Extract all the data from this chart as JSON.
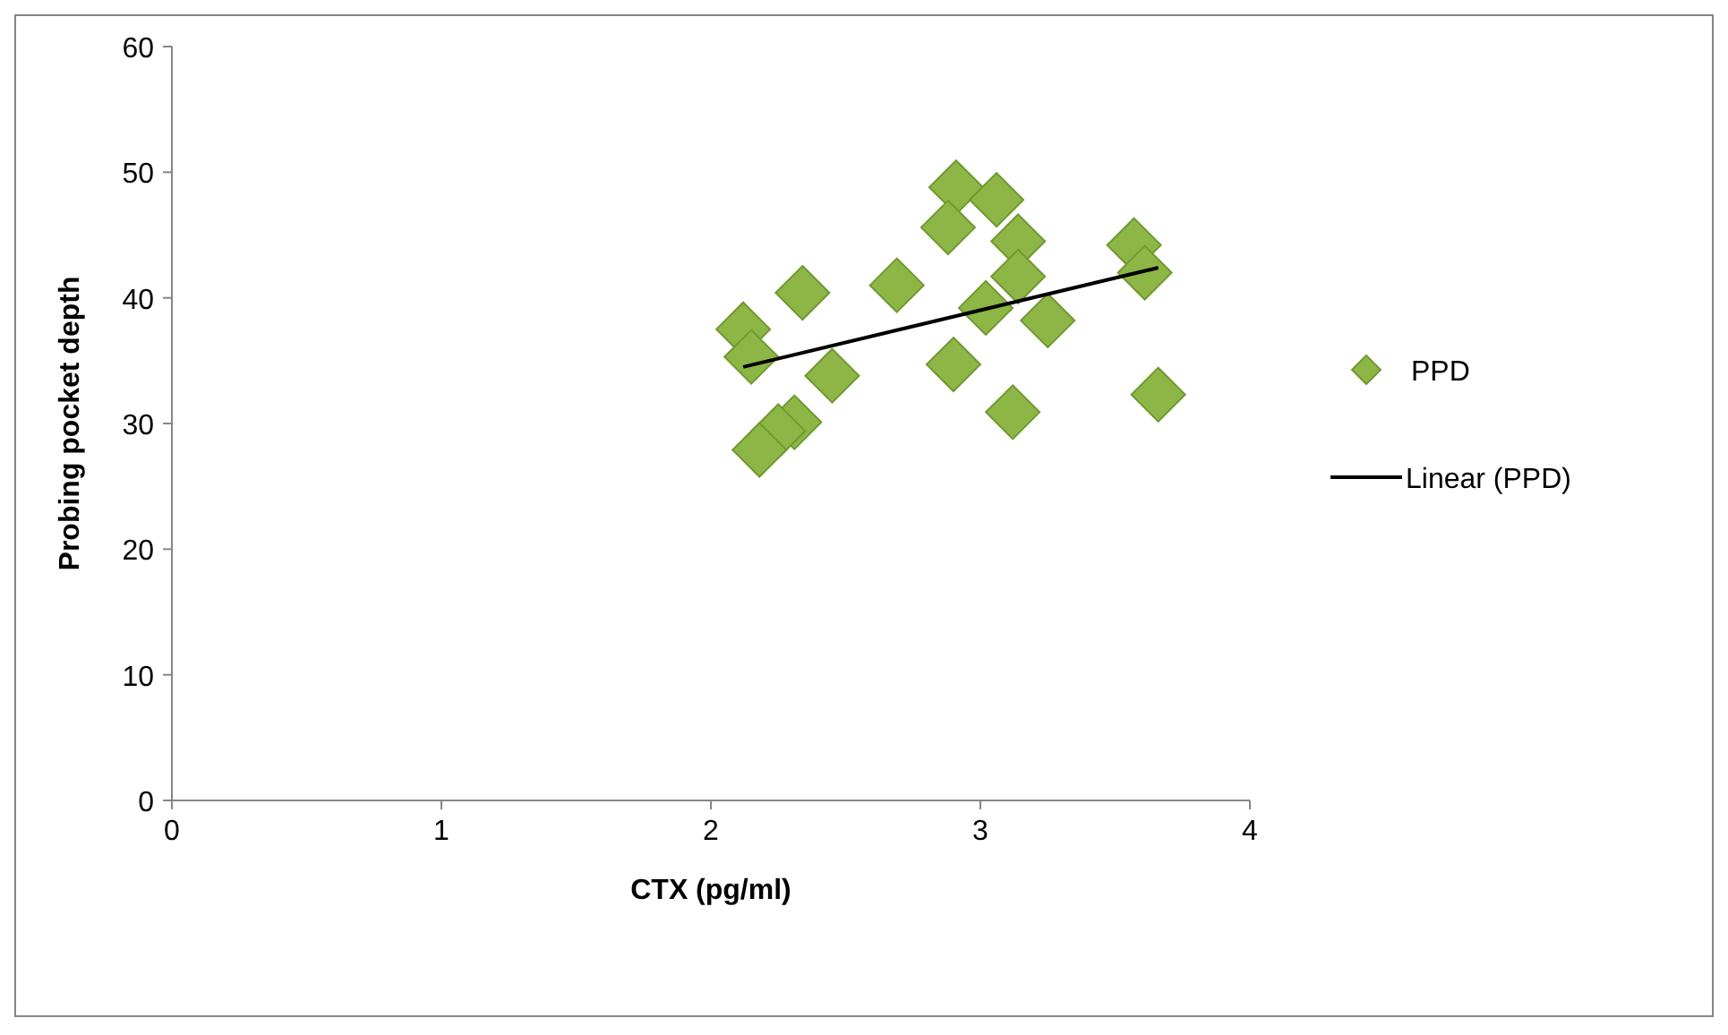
{
  "chart_data": {
    "type": "scatter",
    "xlabel": "CTX (pg/ml)",
    "ylabel": "Probing pocket depth",
    "xlim": [
      0,
      4
    ],
    "ylim": [
      0,
      60
    ],
    "xticks": [
      0,
      1,
      2,
      3,
      4
    ],
    "yticks": [
      0,
      10,
      20,
      30,
      40,
      50,
      60
    ],
    "grid": false,
    "legend": "right",
    "marker": "diamond",
    "series": [
      {
        "name": "PPD",
        "color": "#8db646",
        "x": [
          2.12,
          2.15,
          2.34,
          2.45,
          2.31,
          2.25,
          2.18,
          2.69,
          2.91,
          3.06,
          2.88,
          3.14,
          3.14,
          3.02,
          3.25,
          2.9,
          3.12,
          3.57,
          3.61,
          3.66
        ],
        "values": [
          37.5,
          35.3,
          40.4,
          33.8,
          30.1,
          29.4,
          27.9,
          41.0,
          48.8,
          47.8,
          45.6,
          44.5,
          41.7,
          39.2,
          38.2,
          34.7,
          30.9,
          44.2,
          42.0,
          32.3
        ]
      },
      {
        "name": "Linear (PPD)",
        "type": "line",
        "color": "#000000",
        "marker": "none",
        "x": [
          2.12,
          3.66
        ],
        "values": [
          34.5,
          42.4
        ]
      }
    ]
  }
}
